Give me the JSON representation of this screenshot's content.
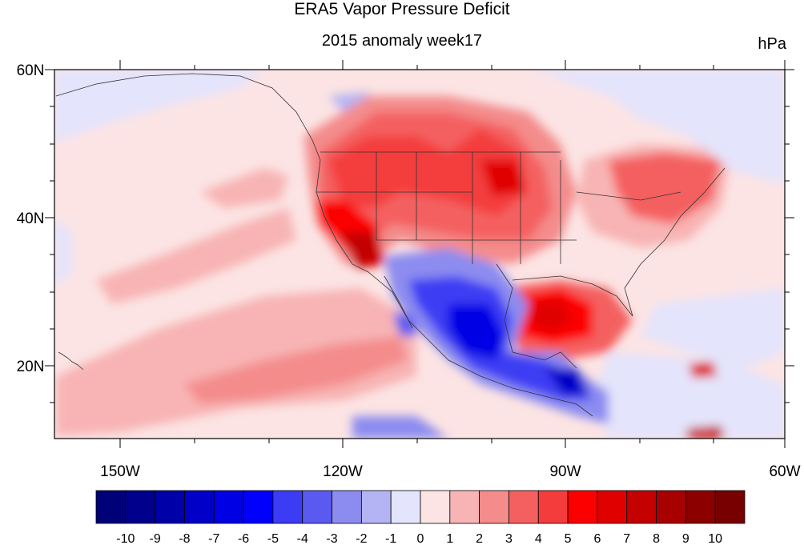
{
  "title": "ERA5 Vapor Pressure Deficit",
  "subtitle": "2015 anomaly week17",
  "units": "hPa",
  "map": {
    "lat_labels": [
      "60N",
      "40N",
      "20N"
    ],
    "lon_labels": [
      "150W",
      "120W",
      "90W",
      "60W"
    ]
  },
  "colorbar": {
    "labels": [
      "-10",
      "-9",
      "-8",
      "-7",
      "-6",
      "-5",
      "-4",
      "-3",
      "-2",
      "-1",
      "0",
      "1",
      "2",
      "3",
      "4",
      "5",
      "6",
      "7",
      "8",
      "9",
      "10"
    ],
    "colors": [
      "#000078",
      "#00008c",
      "#0000a8",
      "#0000c8",
      "#0000e4",
      "#0000fc",
      "#3c3cf4",
      "#5a5af0",
      "#8c8cf0",
      "#b4b4f4",
      "#e4e4fc",
      "#fce4e4",
      "#f8b4b4",
      "#f48c8c",
      "#f46060",
      "#f43c3c",
      "#fc0000",
      "#e00000",
      "#c40000",
      "#a80000",
      "#8c0000",
      "#780000"
    ]
  }
}
